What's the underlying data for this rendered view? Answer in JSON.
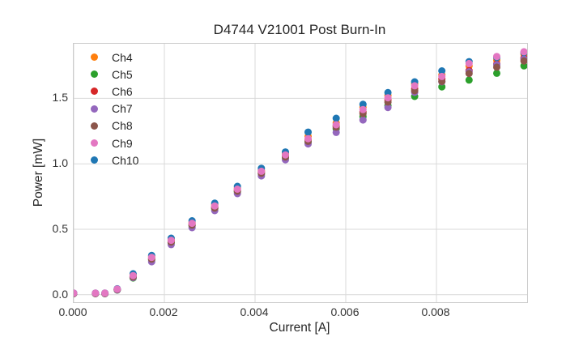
{
  "chart_data": {
    "type": "scatter",
    "title": "D4744 V21001 Post Burn-In",
    "xlabel": "Current [A]",
    "ylabel": "Power [mW]",
    "xlim": [
      0,
      0.01
    ],
    "ylim": [
      -0.057,
      1.917
    ],
    "grid": true,
    "legend_position": "upper left",
    "x_ticks": [
      0.0,
      0.002,
      0.004,
      0.006,
      0.008
    ],
    "x_tick_labels": [
      "0.000",
      "0.002",
      "0.004",
      "0.006",
      "0.008"
    ],
    "y_ticks": [
      0.0,
      0.5,
      1.0,
      1.5
    ],
    "y_tick_labels": [
      "0.0",
      "0.5",
      "1.0",
      "1.5"
    ],
    "marker_radius": 4.5,
    "x": [
      0.0,
      0.00048,
      0.00069,
      0.00096,
      0.00131,
      0.00172,
      0.00215,
      0.00261,
      0.00311,
      0.00361,
      0.00414,
      0.00467,
      0.00517,
      0.00579,
      0.00638,
      0.00693,
      0.00752,
      0.00812,
      0.00872,
      0.00933,
      0.00993
    ],
    "series": [
      {
        "name": "Ch4",
        "color": "#ff7f0e",
        "values": [
          0.01,
          0.01,
          0.01,
          0.041,
          0.155,
          0.293,
          0.424,
          0.554,
          0.688,
          0.814,
          0.95,
          1.078,
          1.21,
          1.312,
          1.432,
          1.522,
          1.61,
          1.678,
          1.748,
          1.792,
          1.838
        ]
      },
      {
        "name": "Ch5",
        "color": "#2ca02c",
        "values": [
          0.008,
          0.008,
          0.008,
          0.036,
          0.128,
          0.266,
          0.396,
          0.527,
          0.658,
          0.786,
          0.922,
          1.046,
          1.165,
          1.268,
          1.36,
          1.445,
          1.515,
          1.588,
          1.64,
          1.692,
          1.748
        ]
      },
      {
        "name": "Ch6",
        "color": "#d62728",
        "values": [
          0.009,
          0.009,
          0.01,
          0.039,
          0.14,
          0.279,
          0.41,
          0.54,
          0.671,
          0.799,
          0.936,
          1.061,
          1.185,
          1.29,
          1.398,
          1.488,
          1.574,
          1.648,
          1.712,
          1.763,
          1.808
        ]
      },
      {
        "name": "Ch7",
        "color": "#9467bd",
        "values": [
          0.009,
          0.009,
          0.009,
          0.037,
          0.131,
          0.252,
          0.383,
          0.512,
          0.642,
          0.772,
          0.908,
          1.031,
          1.152,
          1.24,
          1.335,
          1.43,
          1.546,
          1.627,
          1.703,
          1.756,
          1.8
        ]
      },
      {
        "name": "Ch8",
        "color": "#8c564b",
        "values": [
          0.01,
          0.01,
          0.01,
          0.04,
          0.136,
          0.272,
          0.402,
          0.532,
          0.662,
          0.791,
          0.928,
          1.052,
          1.172,
          1.28,
          1.384,
          1.472,
          1.558,
          1.629,
          1.69,
          1.738,
          1.786
        ]
      },
      {
        "name": "Ch9",
        "color": "#e377c2",
        "values": [
          0.012,
          0.012,
          0.012,
          0.043,
          0.146,
          0.285,
          0.416,
          0.546,
          0.678,
          0.806,
          0.943,
          1.068,
          1.192,
          1.298,
          1.414,
          1.504,
          1.596,
          1.667,
          1.766,
          1.82,
          1.856
        ]
      },
      {
        "name": "Ch10",
        "color": "#1f77b4",
        "values": [
          0.013,
          0.013,
          0.013,
          0.046,
          0.16,
          0.3,
          0.432,
          0.565,
          0.699,
          0.828,
          0.966,
          1.09,
          1.242,
          1.348,
          1.454,
          1.544,
          1.626,
          1.71,
          1.78,
          1.812,
          1.85
        ]
      }
    ],
    "draw_order": [
      0,
      1,
      2,
      3,
      4,
      6,
      5
    ],
    "grid_color": "#d9d9d9",
    "spine_color": "#cccccc"
  }
}
